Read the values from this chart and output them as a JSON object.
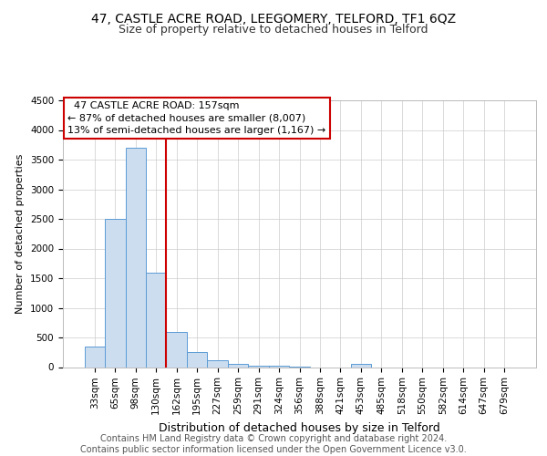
{
  "title1": "47, CASTLE ACRE ROAD, LEEGOMERY, TELFORD, TF1 6QZ",
  "title2": "Size of property relative to detached houses in Telford",
  "xlabel": "Distribution of detached houses by size in Telford",
  "ylabel": "Number of detached properties",
  "footer": "Contains HM Land Registry data © Crown copyright and database right 2024.\nContains public sector information licensed under the Open Government Licence v3.0.",
  "categories": [
    "33sqm",
    "65sqm",
    "98sqm",
    "130sqm",
    "162sqm",
    "195sqm",
    "227sqm",
    "259sqm",
    "291sqm",
    "324sqm",
    "356sqm",
    "388sqm",
    "421sqm",
    "453sqm",
    "485sqm",
    "518sqm",
    "550sqm",
    "582sqm",
    "614sqm",
    "647sqm",
    "679sqm"
  ],
  "values": [
    350,
    2500,
    3700,
    1600,
    600,
    250,
    110,
    50,
    30,
    20,
    5,
    0,
    0,
    50,
    0,
    0,
    0,
    0,
    0,
    0,
    0
  ],
  "bar_color": "#ccddf0",
  "bar_edge_color": "#5b9bd5",
  "vline_x": 3.5,
  "vline_color": "#cc0000",
  "annotation_text": "  47 CASTLE ACRE ROAD: 157sqm  \n← 87% of detached houses are smaller (8,007)\n13% of semi-detached houses are larger (1,167) →",
  "annotation_box_color": "#ffffff",
  "annotation_box_edge": "#cc0000",
  "ylim": [
    0,
    4500
  ],
  "yticks": [
    0,
    500,
    1000,
    1500,
    2000,
    2500,
    3000,
    3500,
    4000,
    4500
  ],
  "grid_color": "#cccccc",
  "bg_color": "#ffffff",
  "title1_fontsize": 10,
  "title2_fontsize": 9,
  "xlabel_fontsize": 9,
  "ylabel_fontsize": 8,
  "tick_fontsize": 7.5,
  "annotation_fontsize": 8,
  "footer_fontsize": 7
}
